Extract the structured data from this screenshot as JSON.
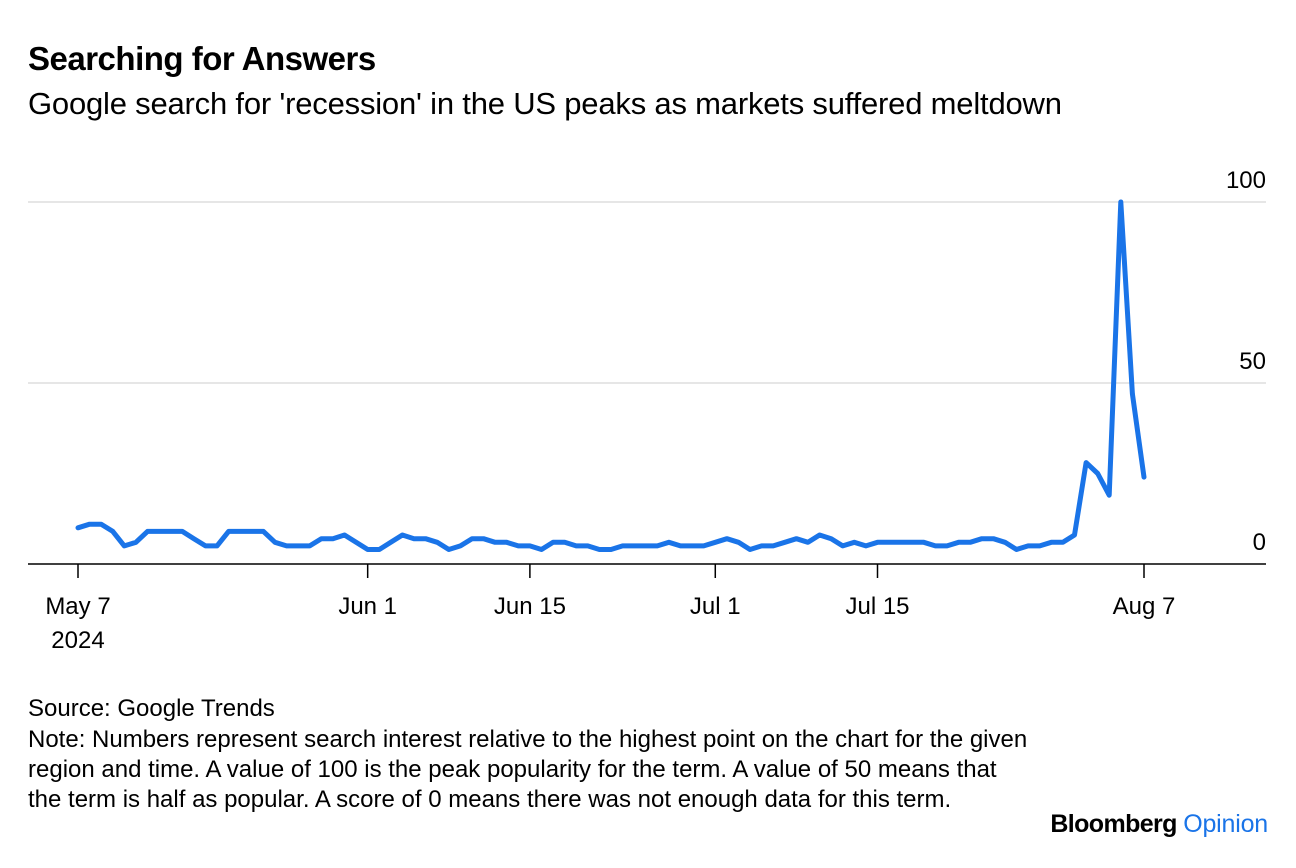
{
  "title": "Searching for Answers",
  "subtitle": "Google search for 'recession' in the US peaks as markets suffered meltdown",
  "source": "Source: Google Trends",
  "note": "Note: Numbers represent search interest relative to the highest point on the chart for the given region and time. A value of 100 is the peak popularity for the term. A value of 50 means that the term is half as popular. A score of 0 means there was not enough data for this term.",
  "brand": {
    "name": "Bloomberg",
    "section": "Opinion"
  },
  "colors": {
    "line": "#1a74e8",
    "grid": "#e6e6e6",
    "axis": "#000000",
    "text": "#000000"
  },
  "chart_data": {
    "type": "line",
    "title": "Searching for Answers",
    "subtitle": "Google search for 'recession' in the US peaks as markets suffered meltdown",
    "xlabel": "",
    "ylabel": "",
    "x_start": "2024-05-07",
    "ylim": [
      0,
      100
    ],
    "yticks": [
      0,
      50,
      100
    ],
    "ytick_labels": [
      "0",
      "50",
      "100"
    ],
    "y_axis_position": "right",
    "grid": true,
    "xticks": [
      {
        "date": "2024-05-07",
        "label": "May 7",
        "sublabel": "2024"
      },
      {
        "date": "2024-06-01",
        "label": "Jun 1"
      },
      {
        "date": "2024-06-15",
        "label": "Jun 15"
      },
      {
        "date": "2024-07-01",
        "label": "Jul 1"
      },
      {
        "date": "2024-07-15",
        "label": "Jul 15"
      },
      {
        "date": "2024-08-07",
        "label": "Aug 7"
      }
    ],
    "series": [
      {
        "values": [
          10,
          11,
          11,
          9,
          5,
          6,
          9,
          9,
          9,
          9,
          7,
          5,
          5,
          9,
          9,
          9,
          9,
          6,
          5,
          5,
          5,
          7,
          7,
          8,
          6,
          4,
          4,
          6,
          8,
          7,
          7,
          6,
          4,
          5,
          7,
          7,
          6,
          6,
          5,
          5,
          4,
          6,
          6,
          5,
          5,
          4,
          4,
          5,
          5,
          5,
          5,
          6,
          5,
          5,
          5,
          6,
          7,
          6,
          4,
          5,
          5,
          6,
          7,
          6,
          8,
          7,
          5,
          6,
          5,
          6,
          6,
          6,
          6,
          6,
          5,
          5,
          6,
          6,
          7,
          7,
          6,
          4,
          5,
          5,
          6,
          6,
          8,
          28,
          25,
          19,
          100,
          47,
          24
        ]
      }
    ]
  }
}
